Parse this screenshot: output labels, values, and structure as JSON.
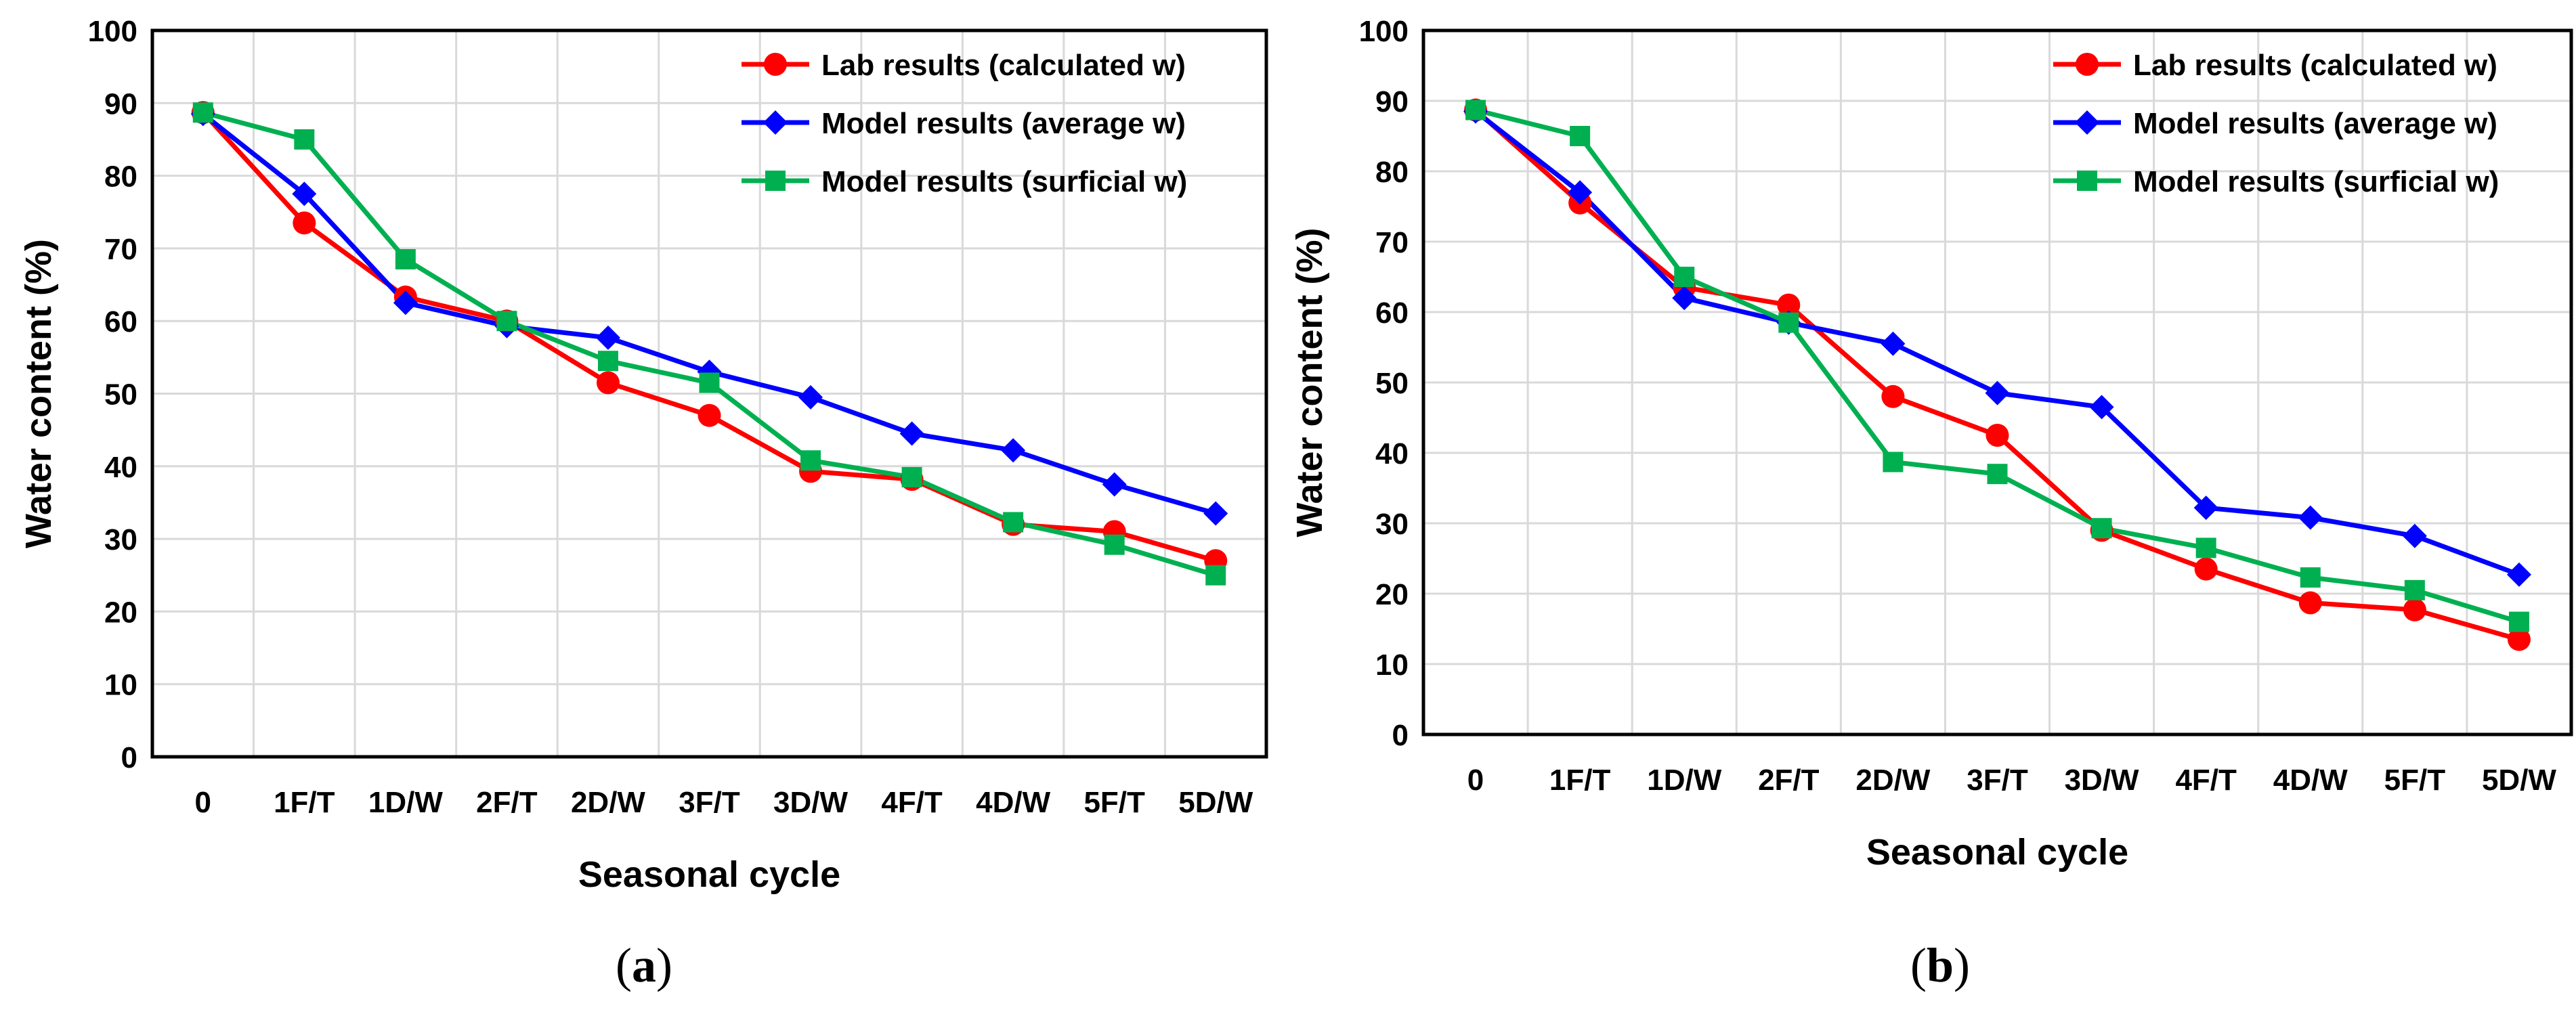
{
  "chart_data": [
    {
      "type": "line",
      "panel_label": "a",
      "xlabel": "Seasonal cycle",
      "ylabel": "Water content (%)",
      "ylim": [
        0,
        100
      ],
      "ytick_step": 10,
      "grid": true,
      "legend_position": "top-right",
      "categories": [
        "0",
        "1F/T",
        "1D/W",
        "2F/T",
        "2D/W",
        "3F/T",
        "3D/W",
        "4F/T",
        "4D/W",
        "5F/T",
        "5D/W"
      ],
      "series": [
        {
          "name": "Lab results (calculated w)",
          "color": "#ff0000",
          "marker": "circle",
          "values": [
            88.7,
            73.5,
            63.3,
            60.0,
            51.5,
            47.0,
            39.3,
            38.2,
            32.0,
            31.0,
            27.0
          ]
        },
        {
          "name": "Model results (average w)",
          "color": "#0000ff",
          "marker": "diamond",
          "values": [
            88.5,
            77.5,
            62.5,
            59.3,
            57.7,
            53.0,
            49.5,
            44.5,
            42.2,
            37.5,
            33.5
          ]
        },
        {
          "name": "Model results (surficial w)",
          "color": "#00b050",
          "marker": "square",
          "values": [
            88.7,
            85.0,
            68.5,
            60.0,
            54.5,
            51.5,
            40.8,
            38.5,
            32.3,
            29.2,
            25.0
          ]
        }
      ]
    },
    {
      "type": "line",
      "panel_label": "b",
      "xlabel": "Seasonal cycle",
      "ylabel": "Water content (%)",
      "ylim": [
        0,
        100
      ],
      "ytick_step": 10,
      "grid": true,
      "legend_position": "top-right",
      "categories": [
        "0",
        "1F/T",
        "1D/W",
        "2F/T",
        "2D/W",
        "3F/T",
        "3D/W",
        "4F/T",
        "4D/W",
        "5F/T",
        "5D/W"
      ],
      "series": [
        {
          "name": "Lab results (calculated w)",
          "color": "#ff0000",
          "marker": "circle",
          "values": [
            88.7,
            75.5,
            63.5,
            61.0,
            48.0,
            42.5,
            29.0,
            23.5,
            18.7,
            17.7,
            13.5
          ]
        },
        {
          "name": "Model results (average w)",
          "color": "#0000ff",
          "marker": "diamond",
          "values": [
            88.5,
            77.0,
            62.0,
            58.5,
            55.5,
            48.5,
            46.5,
            32.2,
            30.8,
            28.2,
            22.7
          ]
        },
        {
          "name": "Model results (surficial w)",
          "color": "#00b050",
          "marker": "square",
          "values": [
            88.7,
            85.0,
            65.0,
            58.5,
            38.7,
            37.0,
            29.3,
            26.5,
            22.3,
            20.5,
            16.0
          ]
        }
      ]
    }
  ]
}
